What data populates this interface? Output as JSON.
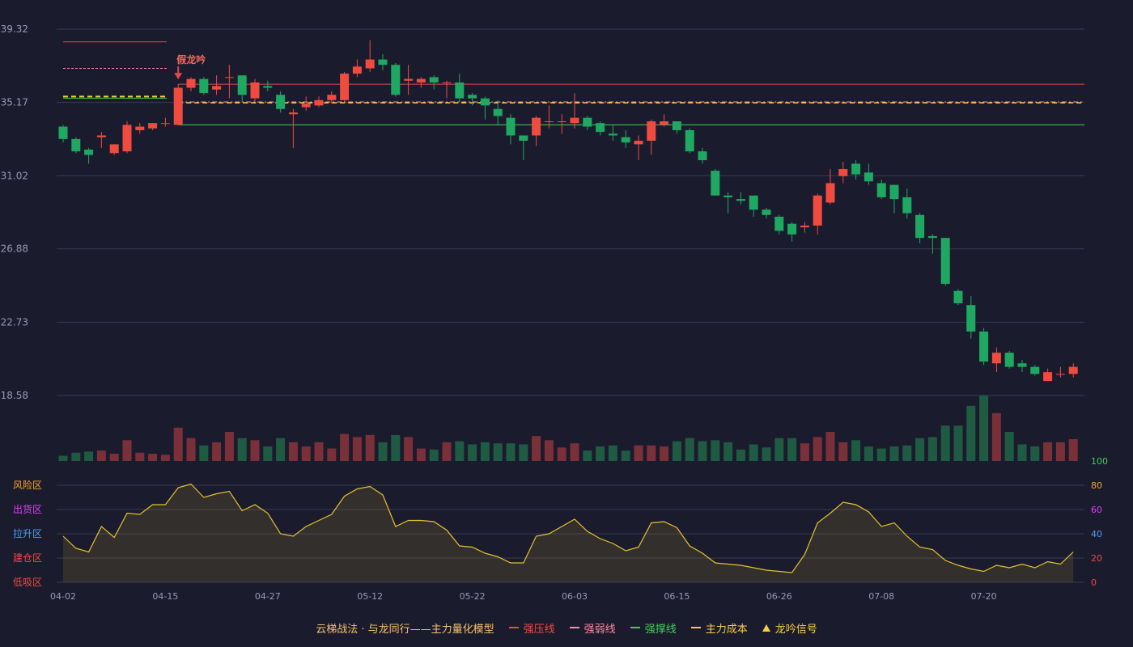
{
  "colors": {
    "background": "#1b1b2e",
    "up": "#ef4b3f",
    "down": "#1fa861",
    "pressure": "#d94a4f",
    "weak": "#ff8aa0",
    "support": "#3fcf55",
    "cost": "#f4d03f",
    "osc_line": "#e3c22d",
    "grid": "#3a3a52",
    "axis_text": "#9a9ab0"
  },
  "legend": {
    "title": "云梯战法 · 与龙同行——主力量化模型",
    "items": [
      {
        "label": "强压线",
        "color": "#ef4b3f",
        "icon": "solid-line-icon"
      },
      {
        "label": "强弱线",
        "color": "#ff8aa0",
        "icon": "dashed-line-icon"
      },
      {
        "label": "强撑线",
        "color": "#3fcf55",
        "icon": "solid-line-icon"
      },
      {
        "label": "主力成本",
        "color": "#f4d03f",
        "icon": "dashed-line-icon"
      },
      {
        "label": "龙吟信号",
        "color": "#f4d03f",
        "icon": "triangle-icon"
      }
    ]
  },
  "chart_data": {
    "type": "candlestick",
    "price_axis": {
      "ticks": [
        "39.32",
        "35.17",
        "31.02",
        "26.88",
        "22.73",
        "18.58"
      ],
      "min": 18.58,
      "max": 39.32
    },
    "x_ticks": [
      "04-02",
      "04-15",
      "04-27",
      "05-12",
      "05-22",
      "06-03",
      "06-15",
      "06-26",
      "07-08",
      "07-20"
    ],
    "x_tick_positions": [
      0,
      8,
      16,
      24,
      32,
      40,
      48,
      56,
      64,
      72
    ],
    "candles": [
      [
        33.8,
        33.1,
        33.9,
        32.9
      ],
      [
        33.1,
        32.4,
        33.2,
        32.3
      ],
      [
        32.5,
        32.2,
        32.6,
        31.7
      ],
      [
        33.2,
        33.3,
        33.5,
        32.6
      ],
      [
        32.3,
        32.8,
        32.8,
        32.2
      ],
      [
        32.4,
        33.9,
        34.1,
        32.3
      ],
      [
        33.6,
        33.8,
        34.0,
        33.4
      ],
      [
        33.7,
        34.0,
        34.0,
        33.6
      ],
      [
        34.0,
        34.0,
        34.3,
        33.8
      ],
      [
        33.9,
        36.0,
        36.2,
        33.9
      ],
      [
        36.0,
        36.5,
        36.6,
        35.8
      ],
      [
        36.5,
        35.7,
        36.6,
        35.6
      ],
      [
        35.9,
        36.1,
        36.7,
        35.6
      ],
      [
        36.6,
        36.6,
        37.3,
        35.4
      ],
      [
        36.7,
        35.6,
        36.7,
        35.2
      ],
      [
        35.4,
        36.3,
        36.5,
        35.2
      ],
      [
        36.1,
        36.0,
        36.4,
        35.8
      ],
      [
        35.6,
        34.8,
        35.8,
        34.6
      ],
      [
        34.5,
        34.6,
        34.8,
        32.6
      ],
      [
        34.9,
        35.1,
        35.5,
        34.7
      ],
      [
        35.0,
        35.3,
        35.5,
        34.9
      ],
      [
        35.3,
        35.6,
        35.8,
        35.1
      ],
      [
        35.3,
        36.8,
        36.9,
        35.2
      ],
      [
        36.8,
        37.2,
        37.6,
        36.6
      ],
      [
        37.1,
        37.6,
        38.7,
        36.9
      ],
      [
        37.6,
        37.3,
        37.9,
        37.0
      ],
      [
        37.3,
        35.6,
        37.4,
        35.5
      ],
      [
        36.4,
        36.5,
        37.3,
        35.6
      ],
      [
        36.3,
        36.5,
        36.6,
        36.0
      ],
      [
        36.6,
        36.3,
        36.7,
        35.9
      ],
      [
        36.3,
        36.3,
        36.4,
        35.4
      ],
      [
        36.3,
        35.4,
        36.8,
        35.2
      ],
      [
        35.6,
        35.4,
        35.7,
        35.0
      ],
      [
        35.4,
        35.0,
        35.5,
        34.2
      ],
      [
        34.8,
        34.4,
        35.3,
        33.9
      ],
      [
        34.3,
        33.3,
        34.5,
        32.8
      ],
      [
        33.3,
        33.0,
        33.3,
        31.9
      ],
      [
        33.3,
        34.3,
        34.4,
        32.7
      ],
      [
        34.1,
        34.1,
        35.0,
        33.7
      ],
      [
        34.1,
        34.1,
        34.5,
        33.4
      ],
      [
        34.0,
        34.3,
        35.7,
        33.7
      ],
      [
        34.3,
        33.8,
        34.4,
        33.6
      ],
      [
        34.0,
        33.5,
        34.1,
        33.3
      ],
      [
        33.4,
        33.3,
        33.9,
        33.0
      ],
      [
        33.2,
        32.9,
        33.6,
        32.6
      ],
      [
        32.8,
        33.0,
        33.3,
        31.9
      ],
      [
        33.0,
        34.1,
        34.2,
        32.2
      ],
      [
        33.9,
        34.1,
        34.5,
        33.8
      ],
      [
        34.1,
        33.6,
        34.1,
        33.4
      ],
      [
        33.6,
        32.4,
        33.7,
        32.3
      ],
      [
        32.4,
        31.9,
        32.6,
        31.7
      ],
      [
        31.3,
        29.9,
        31.4,
        29.9
      ],
      [
        29.9,
        29.8,
        30.1,
        28.9
      ],
      [
        29.7,
        29.6,
        30.1,
        29.4
      ],
      [
        29.9,
        29.1,
        29.9,
        28.7
      ],
      [
        29.1,
        28.8,
        29.2,
        28.6
      ],
      [
        28.7,
        27.9,
        28.8,
        27.7
      ],
      [
        28.3,
        27.7,
        28.4,
        27.3
      ],
      [
        28.1,
        28.2,
        28.4,
        27.8
      ],
      [
        28.2,
        29.9,
        30.0,
        27.7
      ],
      [
        29.5,
        30.6,
        31.4,
        29.4
      ],
      [
        31.0,
        31.4,
        31.8,
        30.6
      ],
      [
        31.7,
        31.1,
        31.9,
        30.8
      ],
      [
        31.2,
        30.7,
        31.7,
        30.5
      ],
      [
        30.6,
        29.8,
        30.8,
        29.7
      ],
      [
        30.5,
        29.7,
        30.5,
        28.9
      ],
      [
        29.8,
        28.9,
        30.3,
        28.6
      ],
      [
        28.8,
        27.5,
        28.9,
        27.2
      ],
      [
        27.6,
        27.5,
        27.7,
        26.6
      ],
      [
        27.5,
        24.9,
        27.5,
        24.8
      ],
      [
        24.5,
        23.8,
        24.6,
        23.7
      ],
      [
        23.7,
        22.2,
        24.2,
        21.8
      ],
      [
        22.2,
        20.5,
        22.4,
        20.3
      ],
      [
        20.4,
        21.0,
        21.3,
        19.9
      ],
      [
        21.0,
        20.2,
        21.1,
        20.1
      ],
      [
        20.4,
        20.2,
        20.6,
        19.9
      ],
      [
        20.2,
        19.8,
        20.3,
        19.7
      ],
      [
        19.4,
        19.9,
        20.1,
        19.4
      ],
      [
        19.8,
        19.8,
        20.2,
        19.6
      ],
      [
        19.8,
        20.2,
        20.4,
        19.6
      ]
    ],
    "volume": [
      5,
      8,
      9,
      10,
      7,
      20,
      8,
      7,
      6,
      32,
      22,
      15,
      18,
      28,
      22,
      20,
      14,
      22,
      18,
      14,
      18,
      12,
      26,
      23,
      25,
      18,
      25,
      23,
      12,
      11,
      18,
      19,
      16,
      18,
      17,
      17,
      16,
      24,
      20,
      13,
      17,
      10,
      14,
      15,
      10,
      15,
      15,
      14,
      19,
      22,
      19,
      20,
      18,
      11,
      16,
      13,
      22,
      22,
      17,
      23,
      28,
      18,
      20,
      14,
      12,
      14,
      15,
      22,
      23,
      34,
      34,
      53,
      63,
      46,
      28,
      16,
      14,
      18,
      18,
      21
    ],
    "volume_axis_label": "100",
    "oscillator": {
      "values": [
        38,
        28,
        25,
        46,
        37,
        57,
        56,
        64,
        64,
        78,
        81,
        70,
        73,
        75,
        59,
        64,
        57,
        40,
        38,
        46,
        51,
        56,
        71,
        77,
        79,
        72,
        46,
        51,
        51,
        50,
        43,
        30,
        29,
        24,
        21,
        16,
        16,
        38,
        40,
        46,
        52,
        42,
        36,
        32,
        26,
        29,
        49,
        50,
        45,
        30,
        24,
        16,
        15,
        14,
        12,
        10,
        9,
        8,
        23,
        49,
        57,
        66,
        64,
        58,
        46,
        49,
        38,
        29,
        27,
        18,
        14,
        11,
        9,
        14,
        12,
        15,
        12,
        17,
        15,
        25
      ],
      "ticks": [
        "100",
        "80",
        "60",
        "40",
        "20",
        "0"
      ],
      "zones": [
        "风险区",
        "出货区",
        "拉升区",
        "建仓区",
        "低吸区"
      ],
      "zone_colors": [
        "#f5a623",
        "#e040fb",
        "#4d9df5",
        "#ef4b3f",
        "#ef4b3f"
      ],
      "tick_colors": [
        "#3fcf55",
        "#f5a623",
        "#e040fb",
        "#4d9df5",
        "#ef4b3f",
        "#ef4b3f"
      ]
    },
    "lines": {
      "pressure": 36.2,
      "support": 33.9,
      "weak": 35.2,
      "cost": 35.15,
      "legacy_pressure": 38.6,
      "legacy_weak": 37.1,
      "legacy_cost": 35.5
    },
    "signal": {
      "index": 9,
      "label": "假龙吟"
    }
  }
}
